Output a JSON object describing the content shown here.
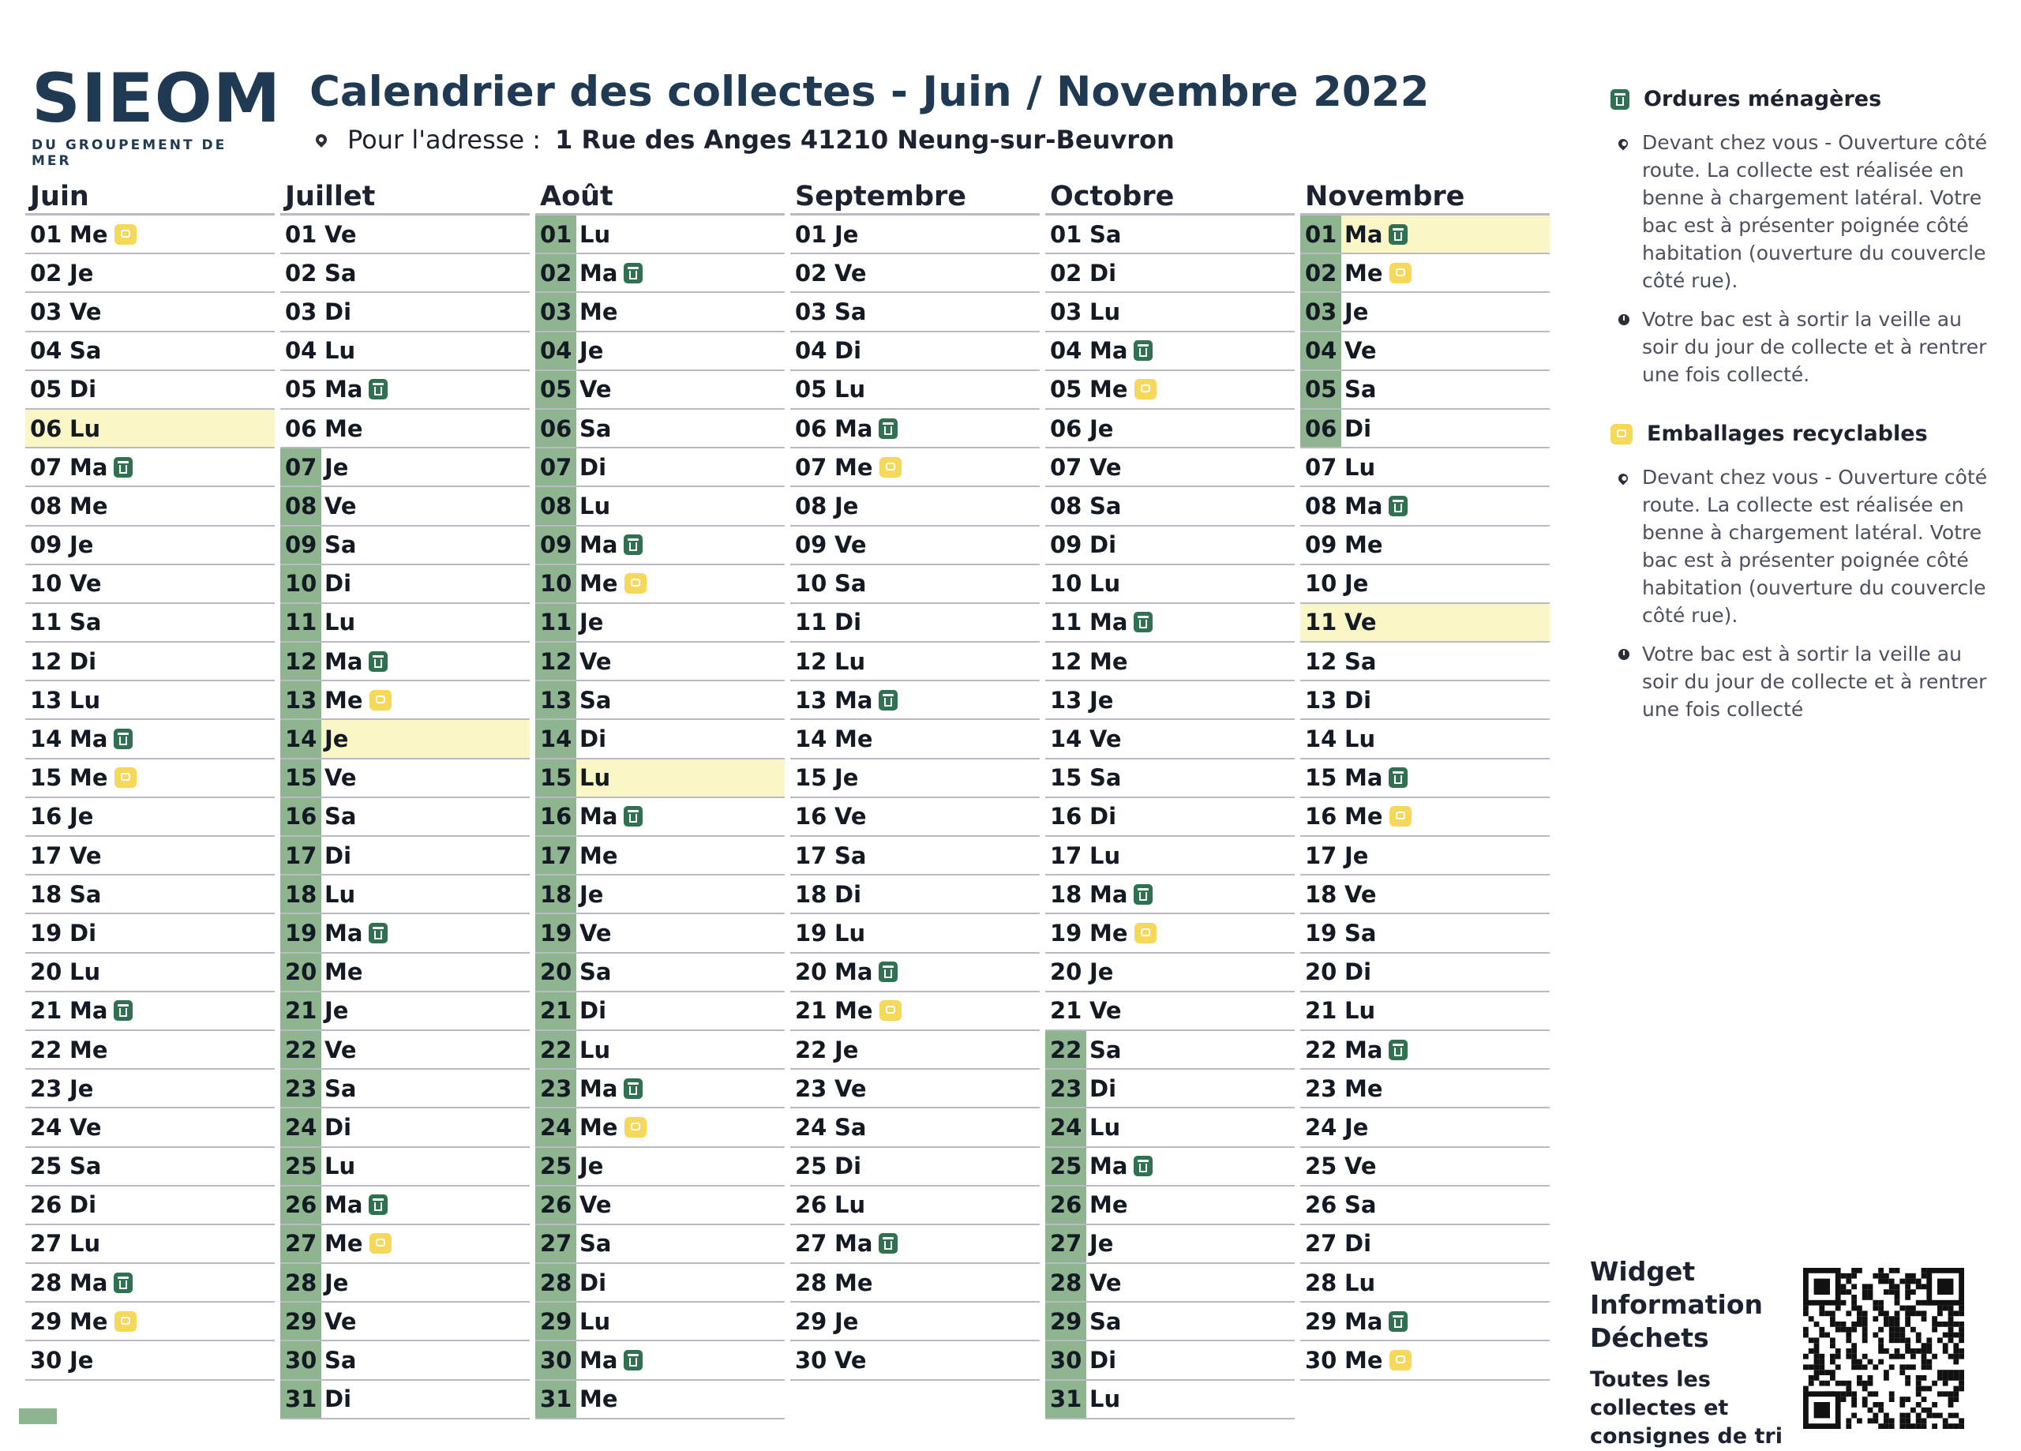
{
  "logo": {
    "main": "SIEOM",
    "sub": "DU GROUPEMENT DE MER"
  },
  "header": {
    "title": "Calendrier des collectes - Juin / Novembre 2022",
    "address_label": "Pour l'adresse :",
    "address_value": "1 Rue des Anges 41210 Neung-sur-Beuvron"
  },
  "months": [
    {
      "name": "Juin",
      "start_wd": "Me",
      "days": 30,
      "om": [
        7,
        14,
        21,
        28
      ],
      "er": [
        1,
        15,
        29
      ],
      "holidays": [
        6
      ],
      "vacation": []
    },
    {
      "name": "Juillet",
      "start_wd": "Ve",
      "days": 31,
      "om": [
        5,
        12,
        19,
        26
      ],
      "er": [
        13,
        27
      ],
      "holidays": [
        14
      ],
      "vacation_from": 7
    },
    {
      "name": "Août",
      "start_wd": "Lu",
      "days": 31,
      "om": [
        2,
        9,
        16,
        23,
        30
      ],
      "er": [
        10,
        24
      ],
      "holidays": [
        15
      ],
      "vacation_from": 1
    },
    {
      "name": "Septembre",
      "start_wd": "Je",
      "days": 30,
      "om": [
        6,
        13,
        20,
        27
      ],
      "er": [
        7,
        21
      ],
      "holidays": [],
      "vacation": []
    },
    {
      "name": "Octobre",
      "start_wd": "Sa",
      "days": 31,
      "om": [
        4,
        11,
        18,
        25
      ],
      "er": [
        5,
        19
      ],
      "holidays": [],
      "vacation_from": 22
    },
    {
      "name": "Novembre",
      "start_wd": "Ma",
      "days": 30,
      "om": [
        1,
        8,
        15,
        22,
        29
      ],
      "er": [
        2,
        16,
        30
      ],
      "holidays": [
        1,
        11
      ],
      "vacation_to": 6
    }
  ],
  "legend": {
    "om": {
      "title": "Ordures ménagères",
      "where": "Devant chez vous - Ouverture côté route. La collecte est réalisée en benne à chargement latéral. Votre bac est à présenter poignée côté habitation (ouverture du couvercle côté rue).",
      "when": "Votre bac est à sortir la veille au soir du jour de collecte et à rentrer une fois collecté."
    },
    "er": {
      "title": "Emballages recyclables",
      "where": "Devant chez vous - Ouverture côté route. La collecte est réalisée en benne à chargement latéral. Votre bac est à présenter poignée côté habitation (ouverture du couvercle côté rue).",
      "when": "Votre bac est à sortir la veille au soir du jour de collecte et à rentrer une fois collecté"
    }
  },
  "widget": {
    "title": "Widget Information Déchets",
    "subtitle": "Toutes les collectes et consignes de tri"
  },
  "colors": {
    "om": "#2f7150",
    "er": "#f6d95a",
    "vacation": "#8fb590",
    "holiday": "#fbf6c6"
  },
  "icons": {
    "om": "trash-bin-icon",
    "er": "recycling-bin-icon",
    "where": "location-pin-icon",
    "when": "clock-icon"
  }
}
